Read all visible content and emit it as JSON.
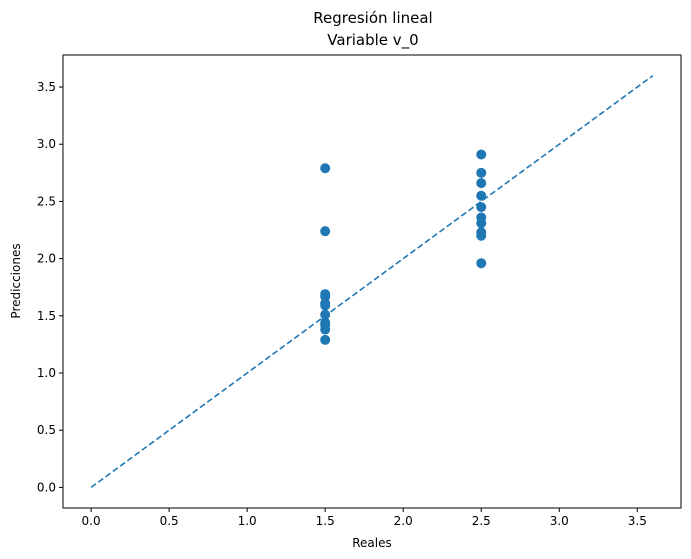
{
  "chart_data": {
    "type": "scatter",
    "title": "Regresión lineal",
    "subtitle": "Variable v_0",
    "xlabel": "Reales",
    "ylabel": "Predicciones",
    "xlim": [
      -0.18,
      3.78
    ],
    "ylim": [
      -0.18,
      3.78
    ],
    "xticks": [
      "0.0",
      "0.5",
      "1.0",
      "1.5",
      "2.0",
      "2.5",
      "3.0",
      "3.5"
    ],
    "yticks": [
      "0.0",
      "0.5",
      "1.0",
      "1.5",
      "2.0",
      "2.5",
      "3.0",
      "3.5"
    ],
    "grid": false,
    "colors": {
      "points": "#1f77b4",
      "reference_line": "#1f77b4"
    },
    "series": [
      {
        "type": "scatter",
        "points": [
          [
            1.5,
            2.79
          ],
          [
            1.5,
            2.24
          ],
          [
            1.5,
            1.69
          ],
          [
            1.5,
            1.67
          ],
          [
            1.5,
            1.61
          ],
          [
            1.5,
            1.59
          ],
          [
            1.5,
            1.51
          ],
          [
            1.5,
            1.44
          ],
          [
            1.5,
            1.42
          ],
          [
            1.5,
            1.38
          ],
          [
            1.5,
            1.29
          ],
          [
            2.5,
            2.91
          ],
          [
            2.5,
            2.75
          ],
          [
            2.5,
            2.66
          ],
          [
            2.5,
            2.55
          ],
          [
            2.5,
            2.45
          ],
          [
            2.5,
            2.36
          ],
          [
            2.5,
            2.31
          ],
          [
            2.5,
            2.23
          ],
          [
            2.5,
            2.2
          ],
          [
            2.5,
            1.96
          ]
        ]
      },
      {
        "type": "line",
        "style": "dashed",
        "points": [
          [
            0.0,
            0.0
          ],
          [
            3.6,
            3.6
          ]
        ]
      }
    ]
  }
}
